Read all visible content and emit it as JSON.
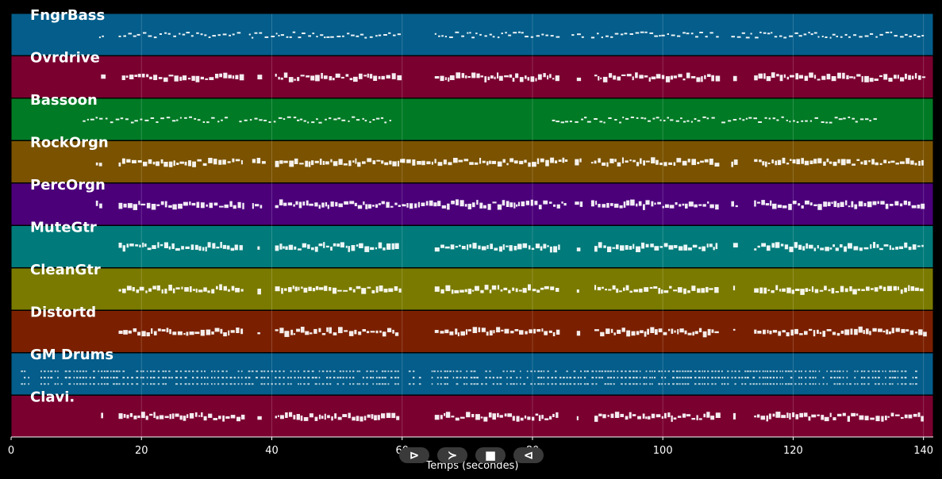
{
  "axis": {
    "xlabel": "Temps (secondes)",
    "xlim": [
      0,
      141.5
    ],
    "ticks": [
      "0",
      "20",
      "40",
      "60",
      "80",
      "100",
      "120",
      "140"
    ],
    "tick_values": [
      0,
      20,
      40,
      60,
      80,
      100,
      120,
      140
    ]
  },
  "tracks": [
    {
      "name": "FngrBass",
      "color": "#045d8a",
      "style": "bass",
      "segments": [
        [
          13.5,
          14
        ],
        [
          16.5,
          35.5
        ],
        [
          36.5,
          60
        ],
        [
          65,
          84
        ],
        [
          86,
          88
        ],
        [
          89,
          108.5
        ],
        [
          110.5,
          140
        ]
      ]
    },
    {
      "name": "Ovrdrive",
      "color": "#7a0030",
      "style": "block",
      "segments": [
        [
          13.8,
          14
        ],
        [
          17,
          35.5
        ],
        [
          37.8,
          38
        ],
        [
          40.5,
          59.5
        ],
        [
          65,
          84
        ],
        [
          86.8,
          87
        ],
        [
          89.5,
          108.5
        ],
        [
          110.8,
          111
        ],
        [
          114,
          140
        ]
      ]
    },
    {
      "name": "Bassoon",
      "color": "#007a25",
      "style": "bass",
      "segments": [
        [
          11,
          33
        ],
        [
          35,
          58.5
        ],
        [
          83,
          108
        ],
        [
          109,
          133
        ]
      ]
    },
    {
      "name": "RockOrgn",
      "color": "#7a5200",
      "style": "block",
      "segments": [
        [
          13,
          14
        ],
        [
          16.5,
          35.5
        ],
        [
          37,
          38.5
        ],
        [
          40.5,
          60
        ],
        [
          60,
          85
        ],
        [
          86.5,
          87.5
        ],
        [
          89,
          108.5
        ],
        [
          110.5,
          111.5
        ],
        [
          114,
          140
        ]
      ]
    },
    {
      "name": "PercOrgn",
      "color": "#4b007a",
      "style": "block",
      "segments": [
        [
          13,
          14
        ],
        [
          16.5,
          35.5
        ],
        [
          37,
          38.5
        ],
        [
          40.5,
          60
        ],
        [
          60,
          85
        ],
        [
          86.5,
          87.5
        ],
        [
          89,
          108.5
        ],
        [
          110.5,
          111.5
        ],
        [
          114,
          140
        ]
      ]
    },
    {
      "name": "MuteGtr",
      "color": "#007a7a",
      "style": "block",
      "segments": [
        [
          16.5,
          35.5
        ],
        [
          37.8,
          38
        ],
        [
          40.5,
          59.5
        ],
        [
          65,
          84
        ],
        [
          86.8,
          87
        ],
        [
          89.5,
          108.5
        ],
        [
          110.8,
          111
        ],
        [
          114,
          140
        ]
      ]
    },
    {
      "name": "CleanGtr",
      "color": "#7a7a00",
      "style": "block",
      "segments": [
        [
          16.5,
          35.5
        ],
        [
          37.8,
          38
        ],
        [
          40.5,
          59.5
        ],
        [
          65,
          84
        ],
        [
          86.8,
          87
        ],
        [
          89.5,
          108.5
        ],
        [
          110.8,
          111
        ],
        [
          114,
          140
        ]
      ]
    },
    {
      "name": "Distortd",
      "color": "#7a2000",
      "style": "block",
      "segments": [
        [
          16.5,
          35.5
        ],
        [
          37.8,
          38
        ],
        [
          40.5,
          59.5
        ],
        [
          65,
          84
        ],
        [
          86.8,
          87
        ],
        [
          89.5,
          108.5
        ],
        [
          110.8,
          111
        ],
        [
          114,
          140
        ]
      ]
    },
    {
      "name": "GM Drums",
      "color": "#045d8a",
      "style": "drums",
      "segments": [
        [
          1.5,
          3
        ],
        [
          4.5,
          59.5
        ],
        [
          61,
          63
        ],
        [
          64.5,
          139
        ]
      ]
    },
    {
      "name": "Clavi.",
      "color": "#7a0030",
      "style": "block",
      "segments": [
        [
          13.8,
          14
        ],
        [
          16.5,
          35.5
        ],
        [
          37.8,
          38
        ],
        [
          40.5,
          59.5
        ],
        [
          65,
          84
        ],
        [
          86.8,
          87
        ],
        [
          89.5,
          108.5
        ],
        [
          110.8,
          111
        ],
        [
          114,
          140
        ]
      ]
    }
  ],
  "transport": {
    "play": "⊳",
    "forward": "≻",
    "stop": "■",
    "rewind": "⊲"
  }
}
